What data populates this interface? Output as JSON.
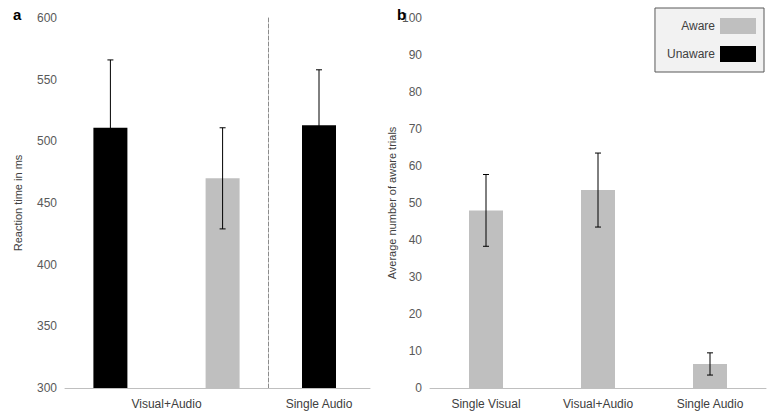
{
  "chart_data": [
    {
      "type": "bar",
      "title": "a",
      "ylabel": "Reaction time in ms",
      "categories": [
        "Visual+Audio",
        "Single Audio"
      ],
      "series": [
        {
          "name": "Unaware",
          "color": "#000000",
          "values": [
            511,
            513
          ],
          "errors": [
            55,
            45
          ]
        },
        {
          "name": "Aware",
          "color": "#bfbfbf",
          "values": [
            470,
            null
          ],
          "errors": [
            41,
            null
          ]
        }
      ],
      "ylim": [
        300,
        600
      ],
      "yticks": [
        300,
        350,
        400,
        450,
        500,
        550,
        600
      ],
      "grid": false,
      "legend": "upper right"
    },
    {
      "type": "bar",
      "title": "b",
      "ylabel": "Average number of aware trials",
      "categories": [
        "Single Visual",
        "Visual+Audio",
        "Single Audio"
      ],
      "series": [
        {
          "name": "Aware",
          "color": "#bfbfbf",
          "values": [
            48,
            53.5,
            6.5
          ],
          "errors": [
            9.7,
            10,
            3
          ]
        }
      ],
      "ylim": [
        0,
        100
      ],
      "yticks": [
        0,
        10,
        20,
        30,
        40,
        50,
        60,
        70,
        80,
        90,
        100
      ],
      "grid": false
    }
  ]
}
